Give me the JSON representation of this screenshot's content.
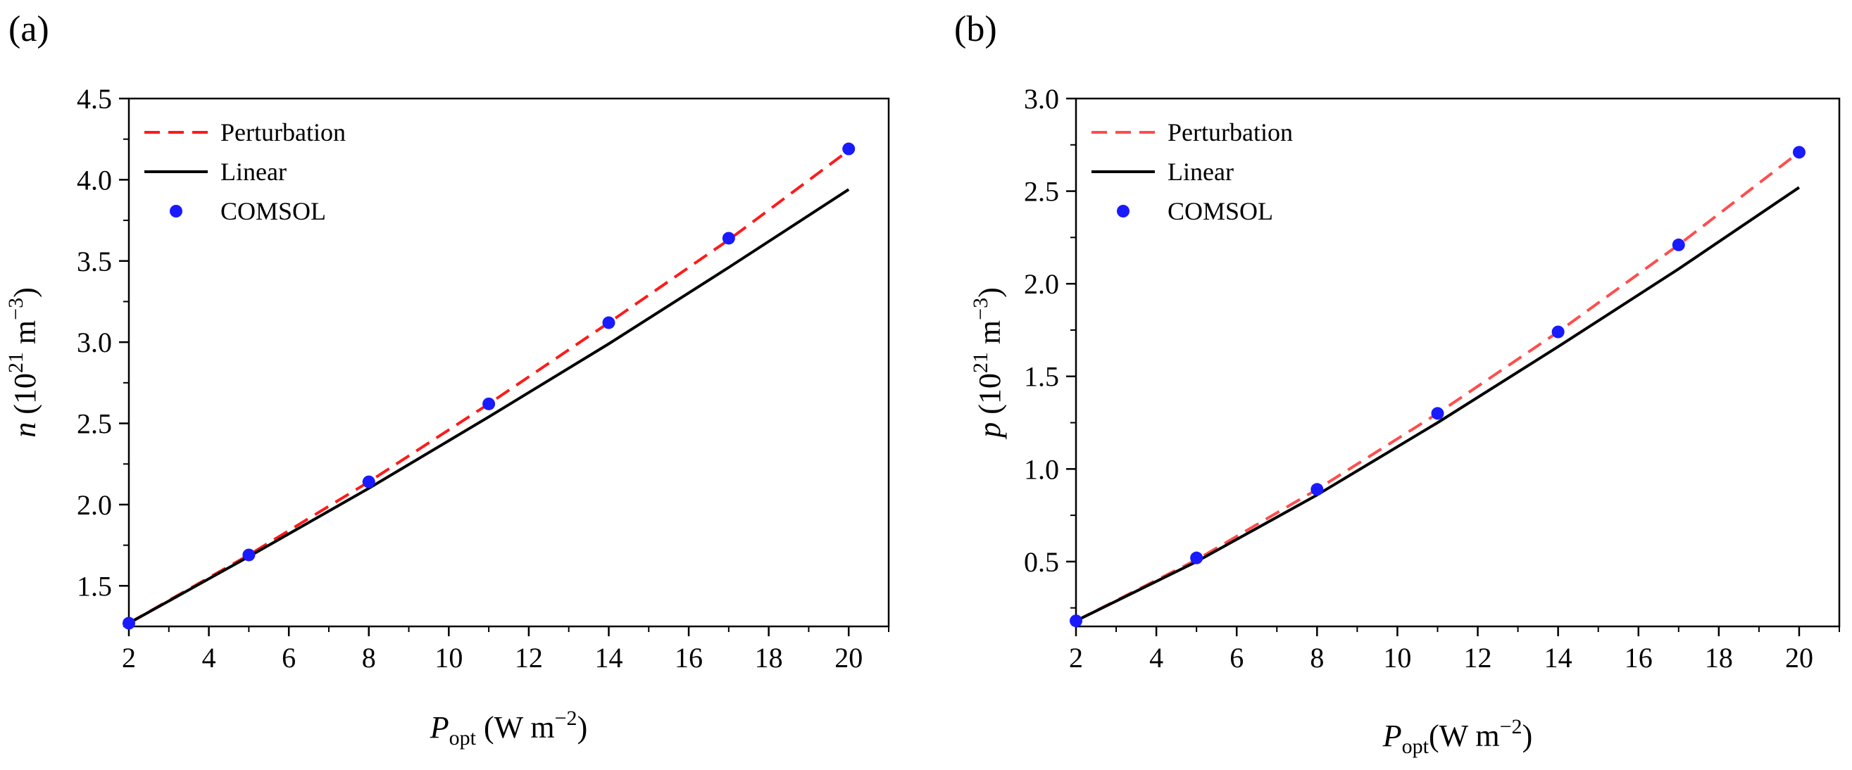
{
  "chart_data": [
    {
      "panel": "(a)",
      "type": "line",
      "xlabel": {
        "symbol": "P",
        "subscript": "opt",
        "unit": " (W m",
        "unit_sup": "−2",
        "unit_close": ")"
      },
      "ylabel": {
        "symbol": "n",
        "unit": " (10",
        "unit_sup": "21",
        "unit_mid": " m",
        "unit_sup2": "−3",
        "unit_close": ")"
      },
      "xlim": [
        2,
        21
      ],
      "ylim": [
        1.25,
        4.5
      ],
      "xticks": [
        "2",
        "4",
        "6",
        "8",
        "10",
        "12",
        "14",
        "16",
        "18",
        "20"
      ],
      "yticks": [
        "1.5",
        "2.0",
        "2.5",
        "3.0",
        "3.5",
        "4.0",
        "4.5"
      ],
      "legend_position": "top-left",
      "series": [
        {
          "name": "Perturbation",
          "style": "dashed",
          "color": "#ff1a1a",
          "x": [
            2,
            5,
            8,
            11,
            14,
            17,
            20
          ],
          "y": [
            1.27,
            1.69,
            2.14,
            2.62,
            3.12,
            3.63,
            4.18
          ]
        },
        {
          "name": "Linear",
          "style": "solid",
          "color": "#000000",
          "x": [
            2,
            5,
            8,
            11,
            14,
            17,
            20
          ],
          "y": [
            1.27,
            1.68,
            2.1,
            2.54,
            2.99,
            3.46,
            3.94
          ]
        },
        {
          "name": "COMSOL",
          "style": "markers",
          "color": "#1a1aff",
          "x": [
            2,
            5,
            8,
            11,
            14,
            17,
            20
          ],
          "y": [
            1.27,
            1.69,
            2.14,
            2.62,
            3.12,
            3.64,
            4.19
          ]
        }
      ]
    },
    {
      "panel": "(b)",
      "type": "line",
      "xlabel": {
        "symbol": "P",
        "subscript": "opt",
        "unit": "(W m",
        "unit_sup": "−2",
        "unit_close": ")"
      },
      "ylabel": {
        "symbol": "p",
        "unit": " (10",
        "unit_sup": "21",
        "unit_mid": " m",
        "unit_sup2": "−3",
        "unit_close": ")"
      },
      "xlim": [
        2,
        21
      ],
      "ylim": [
        0.15,
        3.0
      ],
      "xticks": [
        "2",
        "4",
        "6",
        "8",
        "10",
        "12",
        "14",
        "16",
        "18",
        "20"
      ],
      "yticks": [
        "0.5",
        "1.0",
        "1.5",
        "2.0",
        "2.5",
        "3.0"
      ],
      "legend_position": "top-left",
      "series": [
        {
          "name": "Perturbation",
          "style": "dashed",
          "color": "#ff4d4d",
          "x": [
            2,
            5,
            8,
            11,
            14,
            17,
            20
          ],
          "y": [
            0.18,
            0.51,
            0.89,
            1.3,
            1.74,
            2.21,
            2.71
          ]
        },
        {
          "name": "Linear",
          "style": "solid",
          "color": "#000000",
          "x": [
            2,
            5,
            8,
            11,
            14,
            17,
            20
          ],
          "y": [
            0.18,
            0.5,
            0.86,
            1.25,
            1.66,
            2.08,
            2.52
          ]
        },
        {
          "name": "COMSOL",
          "style": "markers",
          "color": "#1a1aff",
          "x": [
            2,
            5,
            8,
            11,
            14,
            17,
            20
          ],
          "y": [
            0.18,
            0.52,
            0.89,
            1.3,
            1.74,
            2.21,
            2.71
          ]
        }
      ]
    }
  ]
}
